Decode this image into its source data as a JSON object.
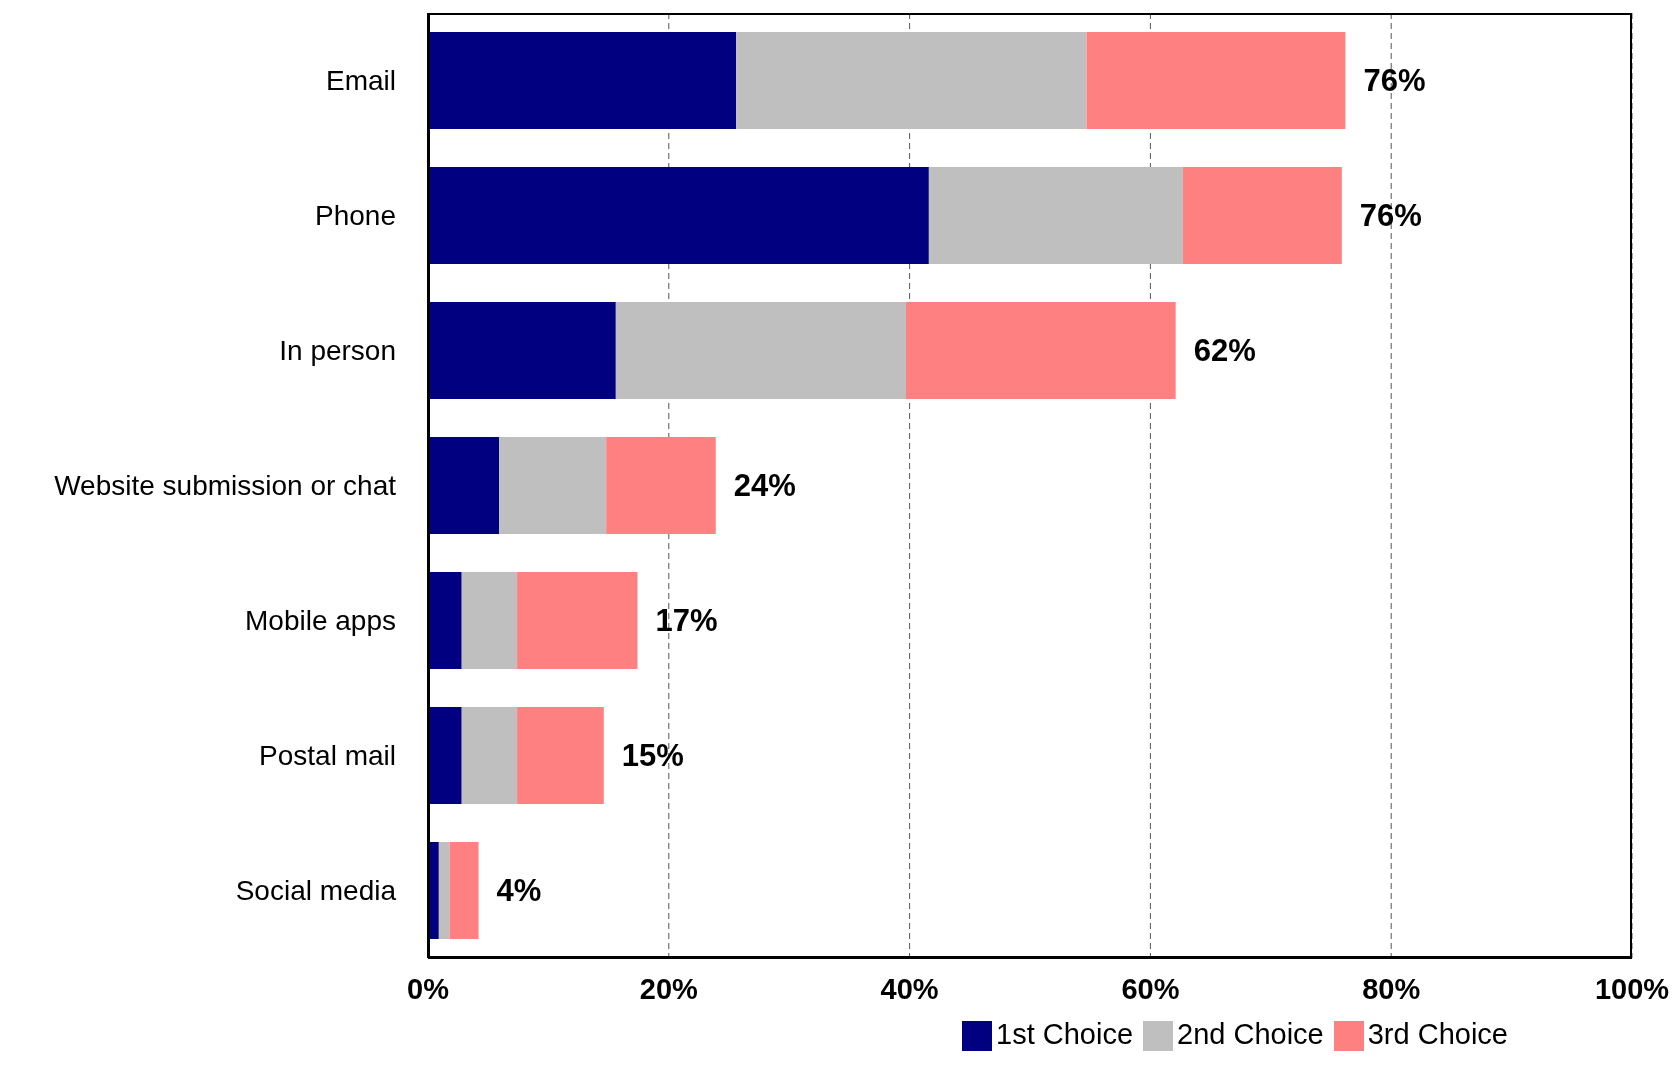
{
  "chart_data": {
    "type": "bar",
    "orientation": "horizontal",
    "stacked": true,
    "categories": [
      "Email",
      "Phone",
      "In person",
      "Website submission or chat",
      "Mobile apps",
      "Postal mail",
      "Social media"
    ],
    "series": [
      {
        "name": "1st Choice",
        "color": "#000080",
        "values": [
          25.6,
          41.6,
          15.6,
          5.9,
          2.8,
          2.8,
          0.9
        ]
      },
      {
        "name": "2nd Choice",
        "color": "#bfbfbf",
        "values": [
          29.1,
          21.1,
          24.1,
          8.9,
          4.6,
          4.6,
          0.9
        ]
      },
      {
        "name": "3rd Choice",
        "color": "#ff8080",
        "values": [
          21.5,
          13.2,
          22.4,
          9.1,
          10.0,
          7.2,
          2.4
        ]
      }
    ],
    "totals": [
      "76%",
      "76%",
      "62%",
      "24%",
      "17%",
      "15%",
      "4%"
    ],
    "xlim": [
      0,
      100
    ],
    "xticks": [
      {
        "value": 0,
        "label": "0%"
      },
      {
        "value": 20,
        "label": "20%"
      },
      {
        "value": 40,
        "label": "40%"
      },
      {
        "value": 60,
        "label": "60%"
      },
      {
        "value": 80,
        "label": "80%"
      },
      {
        "value": 100,
        "label": "100%"
      }
    ],
    "grid": "x",
    "legend": "bottom"
  }
}
